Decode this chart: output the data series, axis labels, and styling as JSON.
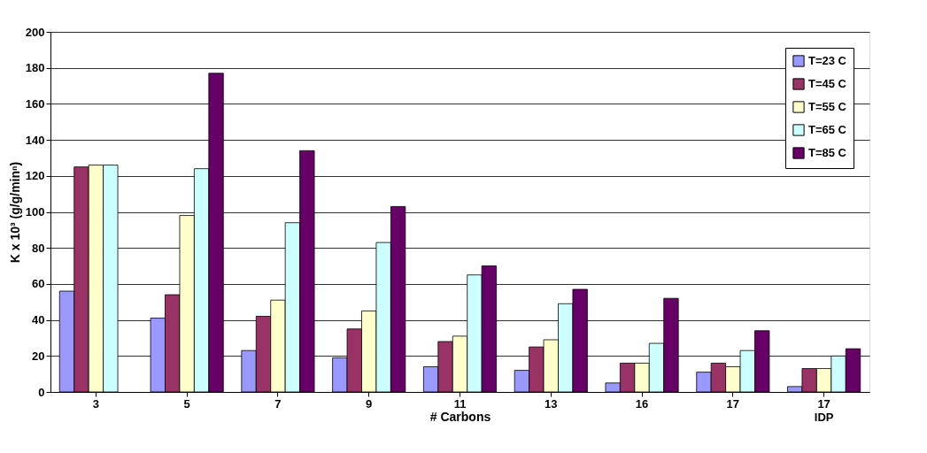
{
  "chart_data": {
    "type": "bar",
    "categories": [
      "3",
      "5",
      "7",
      "9",
      "11",
      "13",
      "16",
      "17",
      "17\nIDP"
    ],
    "xlabel": "# Carbons",
    "ylabel": "K x 10³ (g/g/minⁿ)",
    "ylim": [
      0,
      200
    ],
    "yticks": [
      0,
      20,
      40,
      60,
      80,
      100,
      120,
      140,
      160,
      180,
      200
    ],
    "grid": "y",
    "legend": "top right",
    "series": [
      {
        "name": "T=23 C",
        "color": "#9999ff",
        "values": [
          56,
          41,
          23,
          19,
          14,
          12,
          5,
          11,
          3
        ]
      },
      {
        "name": "T=45 C",
        "color": "#993366",
        "values": [
          125,
          54,
          42,
          35,
          28,
          25,
          16,
          16,
          13
        ]
      },
      {
        "name": "T=55 C",
        "color": "#ffffcc",
        "values": [
          126,
          98,
          51,
          45,
          31,
          29,
          16,
          14,
          13
        ]
      },
      {
        "name": "T=65 C",
        "color": "#ccffff",
        "values": [
          126,
          124,
          94,
          83,
          65,
          49,
          27,
          23,
          20
        ]
      },
      {
        "name": "T=85 C",
        "color": "#660066",
        "values": [
          null,
          177,
          134,
          103,
          70,
          57,
          52,
          34,
          24
        ]
      }
    ]
  }
}
